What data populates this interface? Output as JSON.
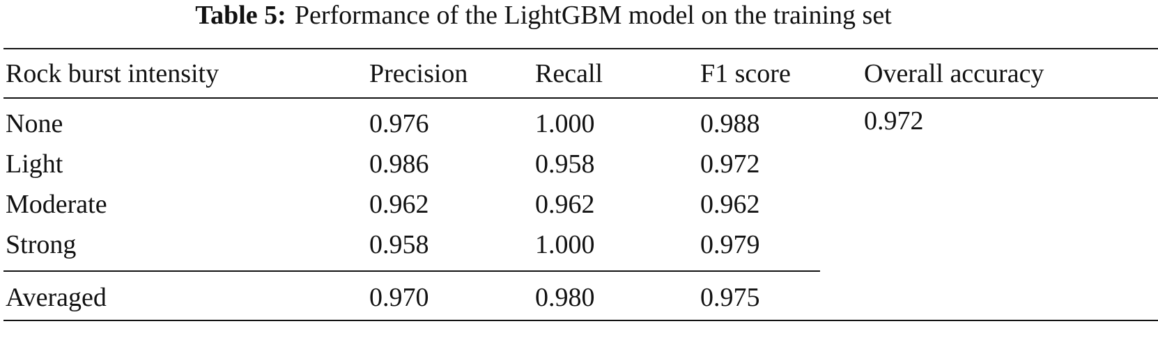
{
  "title": {
    "label": "Table 5:",
    "text": "Performance of the LightGBM model on the training set"
  },
  "table": {
    "header": [
      "Rock burst intensity",
      "Precision",
      "Recall",
      "F1 score",
      "Overall accuracy"
    ],
    "rows": [
      [
        "None",
        "0.976",
        "1.000",
        "0.988"
      ],
      [
        "Light",
        "0.986",
        "0.958",
        "0.972"
      ],
      [
        "Moderate",
        "0.962",
        "0.962",
        "0.962"
      ],
      [
        "Strong",
        "0.958",
        "1.000",
        "0.979"
      ]
    ],
    "average": [
      "Averaged",
      "0.970",
      "0.980",
      "0.975"
    ],
    "overall_accuracy": "0.972"
  }
}
